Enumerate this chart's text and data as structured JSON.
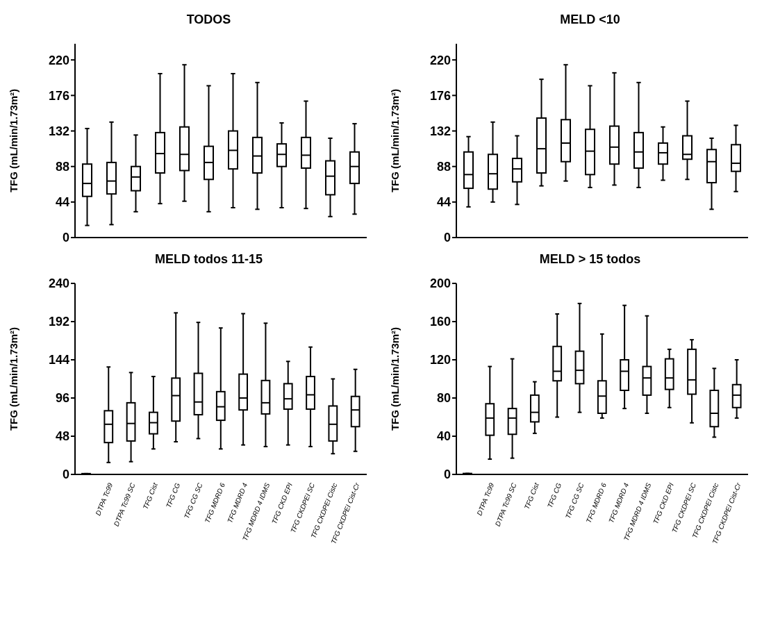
{
  "chart_data": [
    {
      "type": "box",
      "title": "TODOS",
      "ylabel": "TFG (mL/min/1.73m²)",
      "color": "#000000",
      "tick_labels": "y",
      "ylim": [
        0,
        240
      ],
      "yticks": [
        0,
        44,
        88,
        132,
        176,
        220
      ],
      "categories": [
        null,
        null,
        null,
        null,
        null,
        null,
        null,
        null,
        null,
        null,
        null,
        null
      ],
      "boxes": [
        {
          "low": 15,
          "q1": 51,
          "median": 67,
          "q3": 91,
          "high": 135
        },
        {
          "low": 16,
          "q1": 54,
          "median": 70,
          "q3": 93,
          "high": 143
        },
        {
          "low": 32,
          "q1": 58,
          "median": 75,
          "q3": 88,
          "high": 127
        },
        {
          "low": 42,
          "q1": 80,
          "median": 104,
          "q3": 130,
          "high": 203
        },
        {
          "low": 45,
          "q1": 83,
          "median": 103,
          "q3": 137,
          "high": 214
        },
        {
          "low": 32,
          "q1": 72,
          "median": 93,
          "q3": 113,
          "high": 188
        },
        {
          "low": 37,
          "q1": 85,
          "median": 108,
          "q3": 132,
          "high": 203
        },
        {
          "low": 35,
          "q1": 80,
          "median": 101,
          "q3": 124,
          "high": 192
        },
        {
          "low": 37,
          "q1": 88,
          "median": 103,
          "q3": 116,
          "high": 142
        },
        {
          "low": 36,
          "q1": 86,
          "median": 102,
          "q3": 124,
          "high": 169
        },
        {
          "low": 26,
          "q1": 53,
          "median": 76,
          "q3": 95,
          "high": 123
        },
        {
          "low": 29,
          "q1": 67,
          "median": 88,
          "q3": 106,
          "high": 141
        }
      ]
    },
    {
      "type": "box",
      "title": "MELD <10",
      "ylabel": "TFG (mL/min/1.73m²)",
      "color": "#000000",
      "tick_labels": "y",
      "ylim": [
        0,
        240
      ],
      "yticks": [
        0,
        44,
        88,
        132,
        176,
        220
      ],
      "categories": [
        null,
        null,
        null,
        null,
        null,
        null,
        null,
        null,
        null,
        null,
        null,
        null
      ],
      "boxes": [
        {
          "low": 38,
          "q1": 61,
          "median": 78,
          "q3": 106,
          "high": 125
        },
        {
          "low": 44,
          "q1": 60,
          "median": 79,
          "q3": 103,
          "high": 143
        },
        {
          "low": 41,
          "q1": 69,
          "median": 85,
          "q3": 98,
          "high": 126
        },
        {
          "low": 64,
          "q1": 80,
          "median": 110,
          "q3": 148,
          "high": 196
        },
        {
          "low": 70,
          "q1": 94,
          "median": 117,
          "q3": 146,
          "high": 214
        },
        {
          "low": 62,
          "q1": 78,
          "median": 107,
          "q3": 134,
          "high": 188
        },
        {
          "low": 65,
          "q1": 91,
          "median": 112,
          "q3": 138,
          "high": 204
        },
        {
          "low": 62,
          "q1": 86,
          "median": 106,
          "q3": 130,
          "high": 192
        },
        {
          "low": 71,
          "q1": 91,
          "median": 105,
          "q3": 117,
          "high": 137
        },
        {
          "low": 72,
          "q1": 97,
          "median": 103,
          "q3": 126,
          "high": 169
        },
        {
          "low": 35,
          "q1": 68,
          "median": 94,
          "q3": 109,
          "high": 123
        },
        {
          "low": 57,
          "q1": 82,
          "median": 92,
          "q3": 115,
          "high": 139
        }
      ]
    },
    {
      "type": "box",
      "title": "MELD todos 11-15",
      "ylabel": "TFG (mL/min/1.73m²)",
      "color": "#000000",
      "ylim": [
        0,
        240
      ],
      "yticks": [
        0,
        48,
        96,
        144,
        192,
        240
      ],
      "categories": [
        null,
        "DTPA Tc99",
        "DTPA Tc99 SC",
        "TFG Cist",
        "TFG CG",
        "TFG CG SC",
        "TFG MDRD 6",
        "TFG MDRD 4",
        "TFG MDRD 4 IDMS",
        "TFG CKD EPI",
        "TFG CKDPEI SC",
        "TFG CKDPEI Cistc",
        "TFG CKDPEI Cist-Cr"
      ],
      "boxes": [
        {
          "low": 0,
          "q1": 0,
          "median": 0,
          "q3": 1,
          "high": 1
        },
        {
          "low": 15,
          "q1": 40,
          "median": 63,
          "q3": 80,
          "high": 135
        },
        {
          "low": 16,
          "q1": 42,
          "median": 64,
          "q3": 90,
          "high": 128
        },
        {
          "low": 32,
          "q1": 51,
          "median": 65,
          "q3": 78,
          "high": 123
        },
        {
          "low": 41,
          "q1": 67,
          "median": 99,
          "q3": 121,
          "high": 203
        },
        {
          "low": 45,
          "q1": 75,
          "median": 91,
          "q3": 127,
          "high": 191
        },
        {
          "low": 32,
          "q1": 68,
          "median": 85,
          "q3": 104,
          "high": 184
        },
        {
          "low": 37,
          "q1": 81,
          "median": 96,
          "q3": 126,
          "high": 202
        },
        {
          "low": 35,
          "q1": 76,
          "median": 90,
          "q3": 118,
          "high": 190
        },
        {
          "low": 37,
          "q1": 82,
          "median": 95,
          "q3": 114,
          "high": 142
        },
        {
          "low": 35,
          "q1": 82,
          "median": 100,
          "q3": 123,
          "high": 160
        },
        {
          "low": 26,
          "q1": 42,
          "median": 63,
          "q3": 86,
          "high": 120
        },
        {
          "low": 29,
          "q1": 60,
          "median": 81,
          "q3": 98,
          "high": 132
        }
      ]
    },
    {
      "type": "box",
      "title": "MELD > 15 todos",
      "ylabel": "TFG (mL/min/1.73m²)",
      "color": "#000000",
      "ylim": [
        0,
        200
      ],
      "yticks": [
        0,
        40,
        80,
        120,
        160,
        200
      ],
      "categories": [
        null,
        "DTPA Tc99",
        "DTPA Tc99 SC",
        "TFG Cist",
        "TFG CG",
        "TFG CG SC",
        "TFG MDRD 6",
        "TFG MDRD 4",
        "TFG MDRD 4 IDMS",
        "TFG CKD EPI",
        "TFG CKDPEI SC",
        "TFG CKDPEI Cistc",
        "TFG CKDPEI Cist-Cr"
      ],
      "boxes": [
        {
          "low": 0,
          "q1": 0,
          "median": 0,
          "q3": 1,
          "high": 1
        },
        {
          "low": 16,
          "q1": 41,
          "median": 59,
          "q3": 74,
          "high": 113
        },
        {
          "low": 17,
          "q1": 42,
          "median": 59,
          "q3": 69,
          "high": 121
        },
        {
          "low": 43,
          "q1": 55,
          "median": 65,
          "q3": 83,
          "high": 97
        },
        {
          "low": 60,
          "q1": 98,
          "median": 108,
          "q3": 134,
          "high": 168
        },
        {
          "low": 65,
          "q1": 95,
          "median": 109,
          "q3": 129,
          "high": 179
        },
        {
          "low": 59,
          "q1": 64,
          "median": 82,
          "q3": 98,
          "high": 147
        },
        {
          "low": 69,
          "q1": 88,
          "median": 108,
          "q3": 120,
          "high": 177
        },
        {
          "low": 64,
          "q1": 83,
          "median": 101,
          "q3": 113,
          "high": 166
        },
        {
          "low": 70,
          "q1": 89,
          "median": 101,
          "q3": 121,
          "high": 131
        },
        {
          "low": 54,
          "q1": 84,
          "median": 99,
          "q3": 131,
          "high": 141
        },
        {
          "low": 39,
          "q1": 50,
          "median": 64,
          "q3": 88,
          "high": 111
        },
        {
          "low": 59,
          "q1": 70,
          "median": 83,
          "q3": 94,
          "high": 120
        }
      ]
    }
  ]
}
